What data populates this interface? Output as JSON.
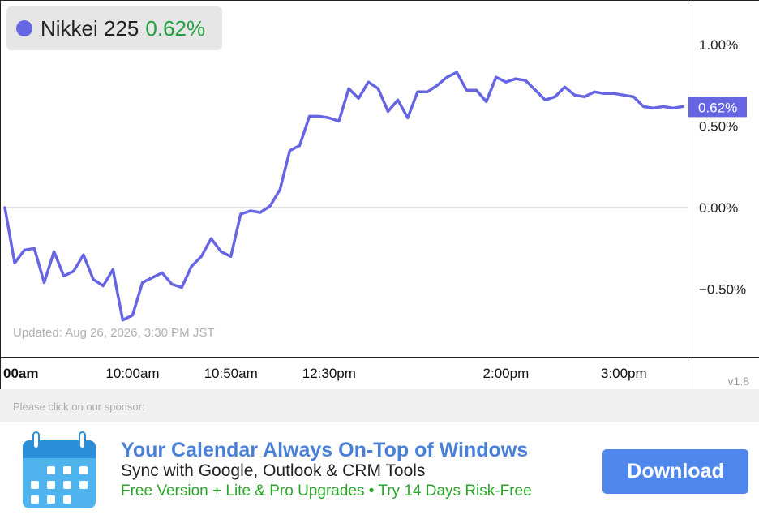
{
  "legend": {
    "name": "Nikkei 225",
    "change": "0.62%"
  },
  "updated_text": "Updated: Aug 26, 2026, 3:30 PM JST",
  "version": "v1.8",
  "colors": {
    "line": "#6666e3",
    "positive": "#22a040",
    "badge": "#6666e3",
    "zero_line": "#c8c8c8"
  },
  "chart_data": {
    "type": "line",
    "title": "",
    "xlabel": "",
    "ylabel": "",
    "ylim": [
      -0.82,
      1.25
    ],
    "y_unit": "%",
    "y_ticks": [
      {
        "value": 1.0,
        "label": "1.00%"
      },
      {
        "value": 0.5,
        "label": "0.50%"
      },
      {
        "value": 0.0,
        "label": "0.00%"
      },
      {
        "value": -0.5,
        "label": "−0.50%"
      }
    ],
    "x_ticks": [
      {
        "index": 0,
        "label": "00am"
      },
      {
        "index": 13,
        "label": "10:00am"
      },
      {
        "index": 23,
        "label": "10:50am"
      },
      {
        "index": 33,
        "label": "12:30pm"
      },
      {
        "index": 51,
        "label": "2:00pm"
      },
      {
        "index": 63,
        "label": "3:00pm"
      }
    ],
    "last_value_label": "0.62%",
    "grid": false,
    "legend_position": "top-left",
    "series": [
      {
        "name": "Nikkei 225",
        "values": [
          0.0,
          -0.34,
          -0.26,
          -0.25,
          -0.46,
          -0.27,
          -0.42,
          -0.39,
          -0.29,
          -0.44,
          -0.48,
          -0.38,
          -0.69,
          -0.66,
          -0.46,
          -0.43,
          -0.4,
          -0.47,
          -0.49,
          -0.36,
          -0.3,
          -0.19,
          -0.27,
          -0.3,
          -0.04,
          -0.02,
          -0.03,
          0.01,
          0.11,
          0.35,
          0.38,
          0.56,
          0.56,
          0.55,
          0.53,
          0.73,
          0.67,
          0.77,
          0.73,
          0.59,
          0.66,
          0.55,
          0.71,
          0.71,
          0.75,
          0.8,
          0.83,
          0.72,
          0.72,
          0.65,
          0.8,
          0.77,
          0.79,
          0.78,
          0.72,
          0.66,
          0.68,
          0.74,
          0.69,
          0.68,
          0.71,
          0.7,
          0.7,
          0.69,
          0.68,
          0.62,
          0.61,
          0.62,
          0.61,
          0.62
        ]
      }
    ]
  },
  "sponsor": {
    "label": "Please click on our sponsor:",
    "title": "Your Calendar Always On-Top of Windows",
    "subtitle": "Sync with Google, Outlook & CRM Tools",
    "tagline": "Free Version + Lite & Pro Upgrades • Try 14 Days Risk-Free",
    "button": "Download",
    "icon": "calendar-icon"
  }
}
